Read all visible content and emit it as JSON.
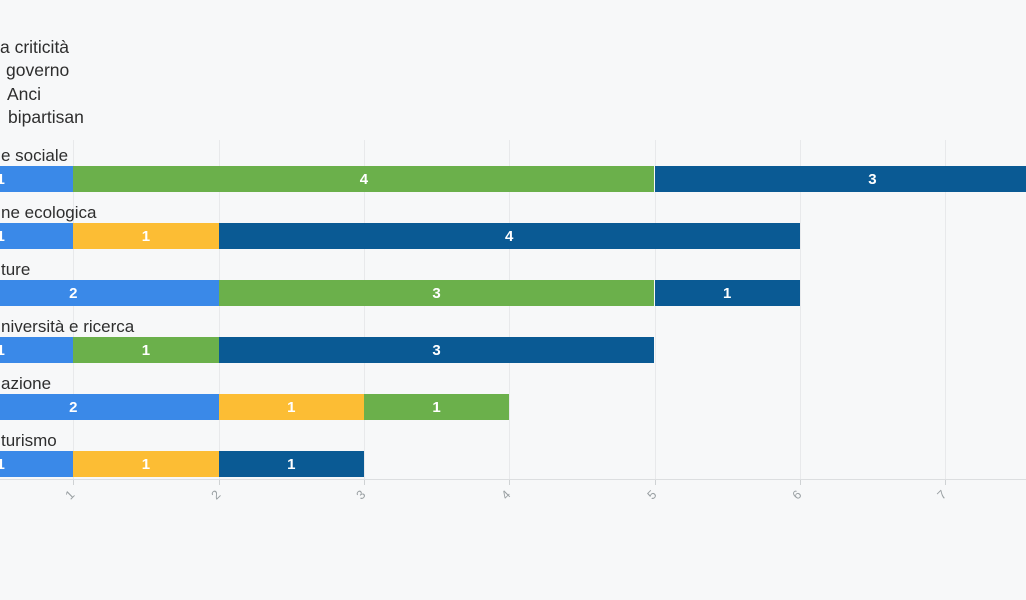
{
  "colors": {
    "background": "#f7f8f9",
    "gridline": "#e8e9eb",
    "axis_line": "#dcdee0",
    "tick_mark": "#cfd2d4",
    "tick_label": "#9aa0a3",
    "category_label": "#2e2e2e",
    "value_label": "#ffffff",
    "blue": "#3a89e8",
    "green": "#6bb04b",
    "orange": "#fcbd34",
    "navy": "#0a5a94"
  },
  "legend": {
    "lines": [
      "a criticità",
      "governo",
      "Anci",
      "bipartisan"
    ]
  },
  "chart_data": {
    "type": "bar",
    "orientation": "horizontal",
    "stacked": true,
    "grid": true,
    "note": "left side of chart (category names, legend swatches, value 0 origin) is cropped off-screen",
    "x_ticks": [
      1,
      2,
      3,
      4,
      5,
      6,
      7
    ],
    "x_visible_range": [
      0.5,
      7.56
    ],
    "categories": [
      "e sociale",
      "ne ecologica",
      "ture",
      "niversità e ricerca",
      "azione",
      "turismo"
    ],
    "rows": [
      {
        "label": "e sociale",
        "segments": [
          {
            "value": 1,
            "color": "blue"
          },
          {
            "value": 4,
            "color": "green"
          },
          {
            "value": 3,
            "color": "navy"
          }
        ]
      },
      {
        "label": "ne ecologica",
        "segments": [
          {
            "value": 1,
            "color": "blue"
          },
          {
            "value": 1,
            "color": "orange"
          },
          {
            "value": 4,
            "color": "navy"
          }
        ]
      },
      {
        "label": "ture",
        "segments": [
          {
            "value": 2,
            "color": "blue"
          },
          {
            "value": 3,
            "color": "green"
          },
          {
            "value": 1,
            "color": "navy"
          }
        ]
      },
      {
        "label": "niversità e ricerca",
        "segments": [
          {
            "value": 1,
            "color": "blue"
          },
          {
            "value": 1,
            "color": "green"
          },
          {
            "value": 3,
            "color": "navy"
          }
        ]
      },
      {
        "label": "azione",
        "segments": [
          {
            "value": 2,
            "color": "blue"
          },
          {
            "value": 1,
            "color": "orange"
          },
          {
            "value": 1,
            "color": "green"
          }
        ]
      },
      {
        "label": "turismo",
        "segments": [
          {
            "value": 1,
            "color": "blue"
          },
          {
            "value": 1,
            "color": "orange"
          },
          {
            "value": 1,
            "color": "navy"
          }
        ]
      }
    ]
  }
}
